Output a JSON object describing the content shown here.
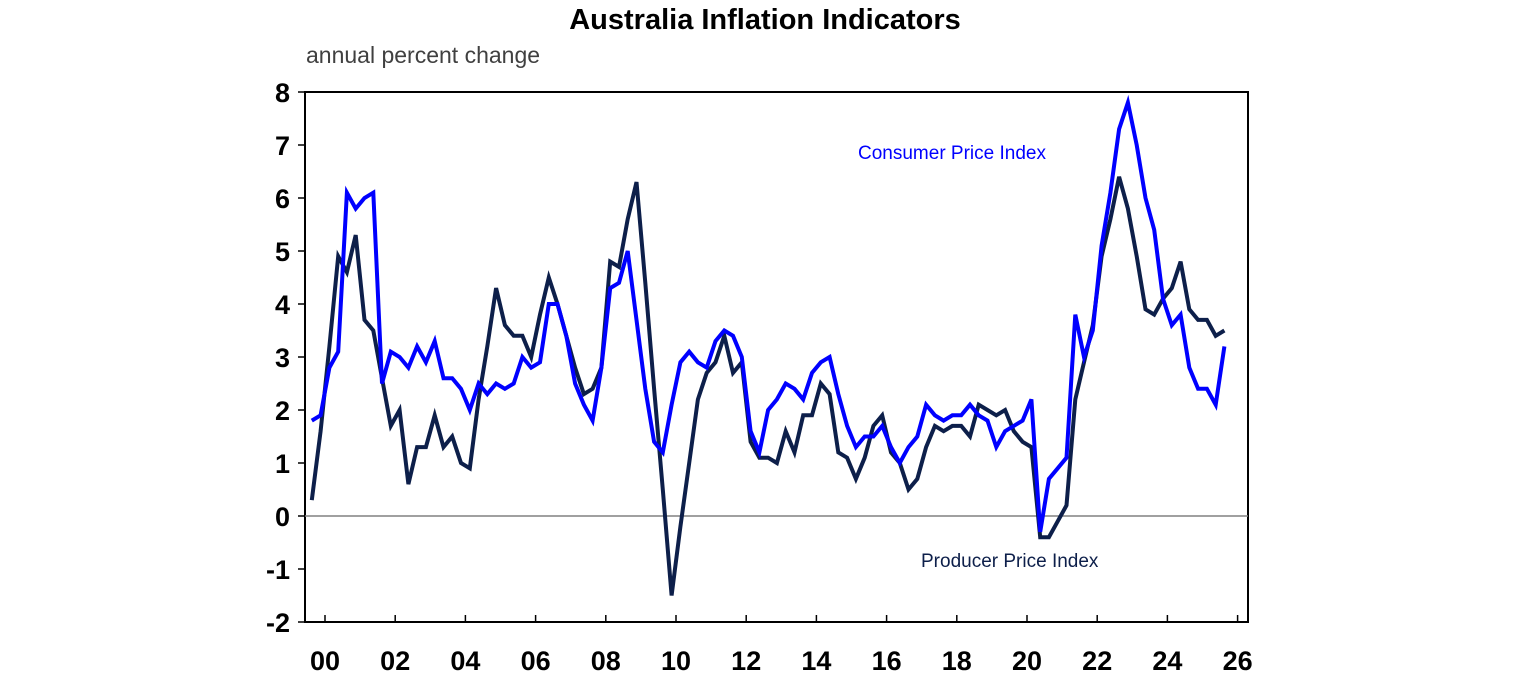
{
  "chart_data": {
    "type": "line",
    "title": "Australia Inflation Indicators",
    "subtitle": "annual percent change",
    "xlabel": "",
    "ylabel": "",
    "ylim": [
      -2,
      8
    ],
    "xlim": [
      1999.5,
      2026
    ],
    "y_ticks": [
      "-2",
      "-1",
      "0",
      "1",
      "2",
      "3",
      "4",
      "5",
      "6",
      "7",
      "8"
    ],
    "x_ticks": [
      "00",
      "02",
      "04",
      "06",
      "08",
      "10",
      "12",
      "14",
      "16",
      "18",
      "20",
      "22",
      "24",
      "26"
    ],
    "grid": false,
    "zero_line": true,
    "x": [
      "1999Q3",
      "1999Q4",
      "2000Q1",
      "2000Q2",
      "2000Q3",
      "2000Q4",
      "2001Q1",
      "2001Q2",
      "2001Q3",
      "2001Q4",
      "2002Q1",
      "2002Q2",
      "2002Q3",
      "2002Q4",
      "2003Q1",
      "2003Q2",
      "2003Q3",
      "2003Q4",
      "2004Q1",
      "2004Q2",
      "2004Q3",
      "2004Q4",
      "2005Q1",
      "2005Q2",
      "2005Q3",
      "2005Q4",
      "2006Q1",
      "2006Q2",
      "2006Q3",
      "2006Q4",
      "2007Q1",
      "2007Q2",
      "2007Q3",
      "2007Q4",
      "2008Q1",
      "2008Q2",
      "2008Q3",
      "2008Q4",
      "2009Q1",
      "2009Q2",
      "2009Q3",
      "2009Q4",
      "2010Q1",
      "2010Q2",
      "2010Q3",
      "2010Q4",
      "2011Q1",
      "2011Q2",
      "2011Q3",
      "2011Q4",
      "2012Q1",
      "2012Q2",
      "2012Q3",
      "2012Q4",
      "2013Q1",
      "2013Q2",
      "2013Q3",
      "2013Q4",
      "2014Q1",
      "2014Q2",
      "2014Q3",
      "2014Q4",
      "2015Q1",
      "2015Q2",
      "2015Q3",
      "2015Q4",
      "2016Q1",
      "2016Q2",
      "2016Q3",
      "2016Q4",
      "2017Q1",
      "2017Q2",
      "2017Q3",
      "2017Q4",
      "2018Q1",
      "2018Q2",
      "2018Q3",
      "2018Q4",
      "2019Q1",
      "2019Q2",
      "2019Q3",
      "2019Q4",
      "2020Q1",
      "2020Q2",
      "2020Q3",
      "2020Q4",
      "2021Q1",
      "2021Q2",
      "2021Q3",
      "2021Q4",
      "2022Q1",
      "2022Q2",
      "2022Q3",
      "2022Q4",
      "2023Q1",
      "2023Q2",
      "2023Q3",
      "2023Q4",
      "2024Q1",
      "2024Q2",
      "2024Q3",
      "2024Q4",
      "2025Q1",
      "2025Q2",
      "2025Q3"
    ],
    "series": [
      {
        "name": "Consumer Price Index",
        "color": "#0000FF",
        "values": [
          1.8,
          1.9,
          2.8,
          3.1,
          6.1,
          5.8,
          6.0,
          6.1,
          2.5,
          3.1,
          3.0,
          2.8,
          3.2,
          2.9,
          3.3,
          2.6,
          2.6,
          2.4,
          2.0,
          2.5,
          2.3,
          2.5,
          2.4,
          2.5,
          3.0,
          2.8,
          2.9,
          4.0,
          4.0,
          3.4,
          2.5,
          2.1,
          1.8,
          2.8,
          4.3,
          4.4,
          5.0,
          3.7,
          2.4,
          1.4,
          1.2,
          2.1,
          2.9,
          3.1,
          2.9,
          2.8,
          3.3,
          3.5,
          3.4,
          3.0,
          1.6,
          1.2,
          2.0,
          2.2,
          2.5,
          2.4,
          2.2,
          2.7,
          2.9,
          3.0,
          2.3,
          1.7,
          1.3,
          1.5,
          1.5,
          1.7,
          1.3,
          1.0,
          1.3,
          1.5,
          2.1,
          1.9,
          1.8,
          1.9,
          1.9,
          2.1,
          1.9,
          1.8,
          1.3,
          1.6,
          1.7,
          1.8,
          2.2,
          -0.3,
          0.7,
          0.9,
          1.1,
          3.8,
          3.0,
          3.5,
          5.1,
          6.1,
          7.3,
          7.8,
          7.0,
          6.0,
          5.4,
          4.1,
          3.6,
          3.8,
          2.8,
          2.4,
          2.4,
          2.1,
          3.2
        ]
      },
      {
        "name": "Producer Price Index",
        "color": "#0D1F4A",
        "values": [
          0.3,
          1.6,
          3.2,
          4.9,
          4.6,
          5.3,
          3.7,
          3.5,
          2.6,
          1.7,
          2.0,
          0.6,
          1.3,
          1.3,
          1.9,
          1.3,
          1.5,
          1.0,
          0.9,
          2.2,
          3.2,
          4.3,
          3.6,
          3.4,
          3.4,
          3.0,
          3.8,
          4.5,
          4.0,
          3.4,
          2.8,
          2.3,
          2.4,
          2.8,
          4.8,
          4.7,
          5.6,
          6.3,
          4.4,
          2.4,
          0.5,
          -1.5,
          -0.2,
          1.0,
          2.2,
          2.7,
          2.9,
          3.4,
          2.7,
          2.9,
          1.4,
          1.1,
          1.1,
          1.0,
          1.6,
          1.2,
          1.9,
          1.9,
          2.5,
          2.3,
          1.2,
          1.1,
          0.7,
          1.1,
          1.7,
          1.9,
          1.2,
          1.0,
          0.5,
          0.7,
          1.3,
          1.7,
          1.6,
          1.7,
          1.7,
          1.5,
          2.1,
          2.0,
          1.9,
          2.0,
          1.6,
          1.4,
          1.3,
          -0.4,
          -0.4,
          -0.1,
          0.2,
          2.2,
          2.9,
          3.6,
          4.9,
          5.6,
          6.4,
          5.8,
          4.9,
          3.9,
          3.8,
          4.1,
          4.3,
          4.8,
          3.9,
          3.7,
          3.7,
          3.4,
          3.5
        ]
      }
    ]
  }
}
